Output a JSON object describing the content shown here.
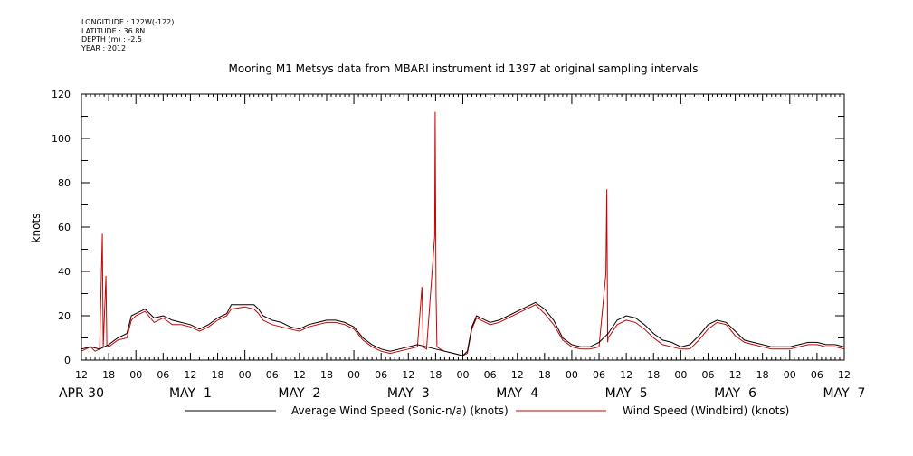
{
  "header": {
    "longitude": "LONGITUDE : 122W(-122)",
    "latitude": "LATITUDE : 36.8N",
    "depth": "DEPTH (m) : -2.5",
    "year": "YEAR : 2012"
  },
  "chart_data": {
    "type": "line",
    "title": "Mooring M1 Metsys data from MBARI instrument id 1397 at original sampling intervals",
    "ylabel": "knots",
    "xlabel": "",
    "ylim": [
      0,
      120
    ],
    "yticks": [
      0,
      20,
      40,
      60,
      80,
      100,
      120
    ],
    "xlim_hours": [
      0,
      168
    ],
    "x_origin": "APR 30 12:00 2012",
    "xtick_labels": [
      "12",
      "18",
      "00",
      "06",
      "12",
      "18",
      "00",
      "06",
      "12",
      "18",
      "00",
      "06",
      "12",
      "18",
      "00",
      "06",
      "12",
      "18",
      "00",
      "06",
      "12",
      "18",
      "00",
      "06",
      "12",
      "18",
      "00",
      "06",
      "12"
    ],
    "day_labels": [
      {
        "label": "APR 30",
        "hour": 0
      },
      {
        "label": "MAY  1",
        "hour": 24
      },
      {
        "label": "MAY  2",
        "hour": 48
      },
      {
        "label": "MAY  3",
        "hour": 72
      },
      {
        "label": "MAY  4",
        "hour": 96
      },
      {
        "label": "MAY  5",
        "hour": 120
      },
      {
        "label": "MAY  6",
        "hour": 144
      },
      {
        "label": "MAY  7",
        "hour": 168
      }
    ],
    "series": [
      {
        "name": "Average Wind Speed (Sonic-n/a) (knots)",
        "color": "#000000",
        "points": [
          [
            0,
            5
          ],
          [
            2,
            6
          ],
          [
            4,
            5
          ],
          [
            6,
            7
          ],
          [
            8,
            10
          ],
          [
            10,
            12
          ],
          [
            11,
            20
          ],
          [
            12,
            21
          ],
          [
            14,
            23
          ],
          [
            16,
            19
          ],
          [
            18,
            20
          ],
          [
            20,
            18
          ],
          [
            22,
            17
          ],
          [
            24,
            16
          ],
          [
            26,
            14
          ],
          [
            28,
            16
          ],
          [
            30,
            19
          ],
          [
            32,
            21
          ],
          [
            33,
            25
          ],
          [
            36,
            25
          ],
          [
            38,
            25
          ],
          [
            39,
            23
          ],
          [
            40,
            20
          ],
          [
            42,
            18
          ],
          [
            44,
            17
          ],
          [
            46,
            15
          ],
          [
            48,
            14
          ],
          [
            50,
            16
          ],
          [
            52,
            17
          ],
          [
            54,
            18
          ],
          [
            56,
            18
          ],
          [
            58,
            17
          ],
          [
            60,
            15
          ],
          [
            62,
            10
          ],
          [
            64,
            7
          ],
          [
            66,
            5
          ],
          [
            68,
            4
          ],
          [
            70,
            5
          ],
          [
            72,
            6
          ],
          [
            74,
            7
          ],
          [
            76,
            6
          ],
          [
            78,
            5
          ],
          [
            80,
            4
          ],
          [
            82,
            3
          ],
          [
            84,
            2
          ],
          [
            85,
            4
          ],
          [
            86,
            15
          ],
          [
            87,
            20
          ],
          [
            90,
            17
          ],
          [
            92,
            18
          ],
          [
            94,
            20
          ],
          [
            96,
            22
          ],
          [
            98,
            24
          ],
          [
            100,
            26
          ],
          [
            102,
            23
          ],
          [
            104,
            18
          ],
          [
            106,
            10
          ],
          [
            108,
            7
          ],
          [
            110,
            6
          ],
          [
            112,
            6
          ],
          [
            114,
            8
          ],
          [
            116,
            12
          ],
          [
            118,
            18
          ],
          [
            120,
            20
          ],
          [
            122,
            19
          ],
          [
            124,
            16
          ],
          [
            126,
            12
          ],
          [
            128,
            9
          ],
          [
            130,
            8
          ],
          [
            132,
            6
          ],
          [
            134,
            7
          ],
          [
            136,
            11
          ],
          [
            138,
            16
          ],
          [
            140,
            18
          ],
          [
            142,
            17
          ],
          [
            144,
            13
          ],
          [
            146,
            9
          ],
          [
            148,
            8
          ],
          [
            150,
            7
          ],
          [
            152,
            6
          ],
          [
            154,
            6
          ],
          [
            156,
            6
          ],
          [
            158,
            7
          ],
          [
            160,
            8
          ],
          [
            162,
            8
          ],
          [
            164,
            7
          ],
          [
            166,
            7
          ],
          [
            168,
            6
          ]
        ]
      },
      {
        "name": "Wind Speed (Windbird) (knots)",
        "color": "#cc0000",
        "points": [
          [
            0,
            4
          ],
          [
            2,
            6
          ],
          [
            3,
            4
          ],
          [
            4,
            5
          ],
          [
            4.6,
            57
          ],
          [
            4.8,
            6
          ],
          [
            5.4,
            38
          ],
          [
            5.6,
            7
          ],
          [
            6,
            6
          ],
          [
            8,
            9
          ],
          [
            10,
            10
          ],
          [
            11,
            18
          ],
          [
            12,
            20
          ],
          [
            14,
            22
          ],
          [
            16,
            17
          ],
          [
            18,
            19
          ],
          [
            20,
            16
          ],
          [
            22,
            16
          ],
          [
            24,
            15
          ],
          [
            26,
            13
          ],
          [
            28,
            15
          ],
          [
            30,
            18
          ],
          [
            32,
            20
          ],
          [
            33,
            23
          ],
          [
            36,
            24
          ],
          [
            38,
            23
          ],
          [
            39,
            21
          ],
          [
            40,
            18
          ],
          [
            42,
            16
          ],
          [
            44,
            15
          ],
          [
            46,
            14
          ],
          [
            48,
            13
          ],
          [
            50,
            15
          ],
          [
            52,
            16
          ],
          [
            54,
            17
          ],
          [
            56,
            17
          ],
          [
            58,
            16
          ],
          [
            60,
            14
          ],
          [
            62,
            9
          ],
          [
            64,
            6
          ],
          [
            66,
            4
          ],
          [
            68,
            3
          ],
          [
            70,
            4
          ],
          [
            72,
            5
          ],
          [
            74,
            6
          ],
          [
            75,
            33
          ],
          [
            75.3,
            6
          ],
          [
            76,
            5
          ],
          [
            77.8,
            56
          ],
          [
            77.9,
            112
          ],
          [
            78.1,
            30
          ],
          [
            78.3,
            6
          ],
          [
            79,
            5
          ],
          [
            80,
            4
          ],
          [
            82,
            3
          ],
          [
            84,
            2
          ],
          [
            85,
            3
          ],
          [
            86,
            14
          ],
          [
            87,
            19
          ],
          [
            90,
            16
          ],
          [
            92,
            17
          ],
          [
            94,
            19
          ],
          [
            96,
            21
          ],
          [
            98,
            23
          ],
          [
            100,
            25
          ],
          [
            102,
            21
          ],
          [
            104,
            16
          ],
          [
            106,
            9
          ],
          [
            108,
            6
          ],
          [
            110,
            5
          ],
          [
            112,
            5
          ],
          [
            114,
            6
          ],
          [
            115.5,
            39
          ],
          [
            115.7,
            77
          ],
          [
            115.9,
            8
          ],
          [
            116,
            10
          ],
          [
            118,
            16
          ],
          [
            120,
            18
          ],
          [
            122,
            17
          ],
          [
            124,
            14
          ],
          [
            126,
            10
          ],
          [
            128,
            7
          ],
          [
            130,
            6
          ],
          [
            132,
            5
          ],
          [
            134,
            5
          ],
          [
            136,
            9
          ],
          [
            138,
            14
          ],
          [
            140,
            17
          ],
          [
            142,
            16
          ],
          [
            144,
            11
          ],
          [
            146,
            8
          ],
          [
            148,
            7
          ],
          [
            150,
            6
          ],
          [
            152,
            5
          ],
          [
            154,
            5
          ],
          [
            156,
            5
          ],
          [
            158,
            6
          ],
          [
            160,
            7
          ],
          [
            162,
            7
          ],
          [
            164,
            6
          ],
          [
            166,
            6
          ],
          [
            168,
            5
          ]
        ]
      }
    ],
    "grid": false,
    "legend_position": "bottom"
  }
}
